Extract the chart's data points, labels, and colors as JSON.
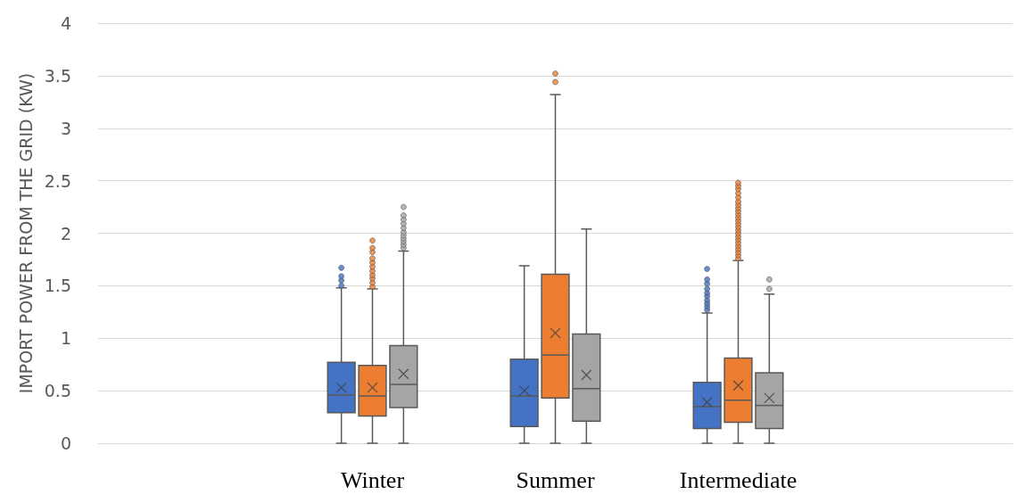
{
  "chart_data": {
    "type": "box",
    "ylabel": "IMPORT POWER FROM THE GRID (KW)",
    "categories": [
      null,
      "Winter",
      "Summer",
      "Intermediate",
      null
    ],
    "ylim": [
      0,
      4
    ],
    "yticks": [
      0,
      0.5,
      1,
      1.5,
      2,
      2.5,
      3,
      3.5,
      4
    ],
    "grid": "y",
    "series": [
      {
        "color": "#4472c4",
        "boxes": [
          null,
          {
            "low": 0,
            "q1": 0.29,
            "median": 0.46,
            "q3": 0.77,
            "high": 1.48,
            "mean": 0.53,
            "outliers": [
              1.5,
              1.55,
              1.59,
              1.67
            ]
          },
          {
            "low": 0,
            "q1": 0.16,
            "median": 0.45,
            "q3": 0.8,
            "high": 1.69,
            "mean": 0.5
          },
          {
            "low": 0,
            "q1": 0.14,
            "median": 0.35,
            "q3": 0.58,
            "high": 1.24,
            "mean": 0.39,
            "outliers": [
              1.27,
              1.3,
              1.33,
              1.36,
              1.4,
              1.43,
              1.47,
              1.52,
              1.56,
              1.66
            ]
          },
          null
        ]
      },
      {
        "color": "#ed7d31",
        "boxes": [
          null,
          {
            "low": 0,
            "q1": 0.26,
            "median": 0.45,
            "q3": 0.74,
            "high": 1.47,
            "mean": 0.53,
            "outliers": [
              1.49,
              1.53,
              1.57,
              1.6,
              1.64,
              1.68,
              1.72,
              1.76,
              1.82,
              1.86,
              1.93
            ]
          },
          {
            "low": 0,
            "q1": 0.43,
            "median": 0.84,
            "q3": 1.61,
            "high": 3.32,
            "mean": 1.05,
            "outliers": [
              3.44,
              3.52
            ]
          },
          {
            "low": 0,
            "q1": 0.2,
            "median": 0.41,
            "q3": 0.81,
            "high": 1.74,
            "mean": 0.55,
            "outliers": [
              1.76,
              1.79,
              1.82,
              1.85,
              1.88,
              1.91,
              1.94,
              1.97,
              2.0,
              2.03,
              2.06,
              2.09,
              2.12,
              2.15,
              2.18,
              2.21,
              2.24,
              2.27,
              2.3,
              2.34,
              2.38,
              2.42,
              2.45,
              2.48
            ]
          },
          null
        ]
      },
      {
        "color": "#a5a5a5",
        "boxes": [
          null,
          {
            "low": 0,
            "q1": 0.34,
            "median": 0.56,
            "q3": 0.93,
            "high": 1.83,
            "mean": 0.66,
            "outliers": [
              1.86,
              1.89,
              1.92,
              1.95,
              1.98,
              2.01,
              2.05,
              2.09,
              2.13,
              2.17,
              2.25
            ]
          },
          {
            "low": 0,
            "q1": 0.21,
            "median": 0.52,
            "q3": 1.04,
            "high": 2.04,
            "mean": 0.65
          },
          {
            "low": 0,
            "q1": 0.14,
            "median": 0.36,
            "q3": 0.67,
            "high": 1.42,
            "mean": 0.43,
            "outliers": [
              1.47,
              1.56
            ]
          },
          null
        ]
      }
    ]
  }
}
